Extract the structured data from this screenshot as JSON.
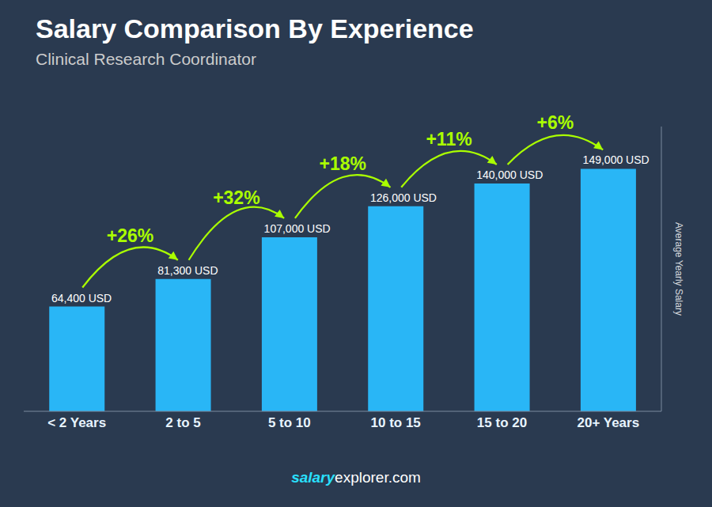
{
  "chart_data": {
    "type": "bar",
    "title": "Salary Comparison By Experience",
    "subtitle": "Clinical Research Coordinator",
    "ylabel": "Average Yearly Salary",
    "categories": [
      "< 2 Years",
      "2 to 5",
      "5 to 10",
      "10 to 15",
      "15 to 20",
      "20+ Years"
    ],
    "values": [
      64400,
      81300,
      107000,
      126000,
      140000,
      149000
    ],
    "value_labels": [
      "64,400 USD",
      "81,300 USD",
      "107,000 USD",
      "126,000 USD",
      "140,000 USD",
      "149,000 USD"
    ],
    "data_labels": true,
    "color": "#29b6f6",
    "ylim": [
      0,
      175000
    ],
    "tick_labels": "x",
    "grid": false,
    "annotations": [
      {
        "text": "+26%",
        "from": "< 2 Years",
        "to": "2 to 5",
        "color": "#aaff00"
      },
      {
        "text": "+32%",
        "from": "2 to 5",
        "to": "5 to 10",
        "color": "#aaff00"
      },
      {
        "text": "+18%",
        "from": "5 to 10",
        "to": "10 to 15",
        "color": "#aaff00"
      },
      {
        "text": "+11%",
        "from": "10 to 15",
        "to": "15 to 20",
        "color": "#aaff00"
      },
      {
        "text": "+6%",
        "from": "15 to 20",
        "to": "20+ Years",
        "color": "#aaff00"
      }
    ],
    "footer": [
      {
        "text": "salary",
        "color": "#29e0ff"
      },
      {
        "text": "explorer.com",
        "color": "#ffffff"
      }
    ],
    "background": "#2a3a50"
  }
}
